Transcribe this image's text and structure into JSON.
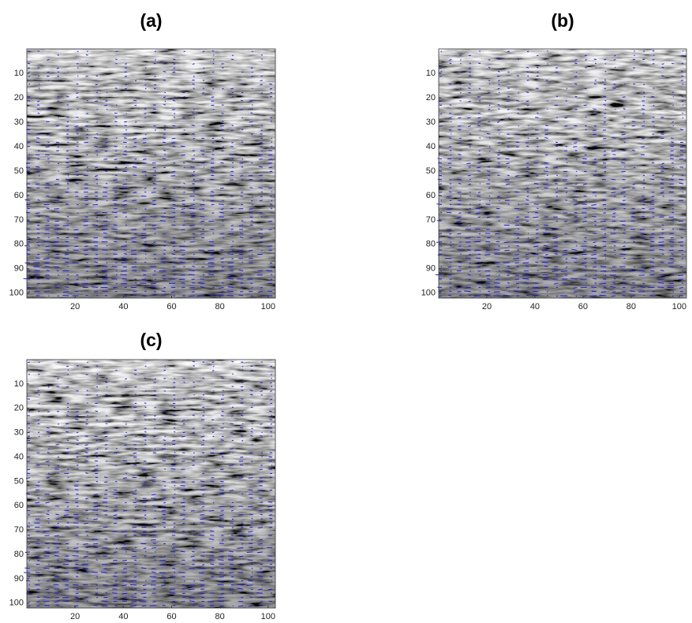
{
  "chart_data": [
    {
      "type": "image",
      "title": "(a)",
      "xlim": [
        0,
        103
      ],
      "ylim": [
        0,
        102
      ],
      "ydir": "reverse",
      "xticks": [
        20,
        40,
        60,
        80,
        100
      ],
      "yticks": [
        10,
        20,
        30,
        40,
        50,
        60,
        70,
        80,
        90,
        100
      ],
      "quiver_color": "#1a1aff"
    },
    {
      "type": "image",
      "title": "(b)",
      "xlim": [
        0,
        103
      ],
      "ylim": [
        0,
        102
      ],
      "ydir": "reverse",
      "xticks": [
        20,
        40,
        60,
        80,
        100
      ],
      "yticks": [
        10,
        20,
        30,
        40,
        50,
        60,
        70,
        80,
        90,
        100
      ],
      "quiver_color": "#1a1aff"
    },
    {
      "type": "image",
      "title": "(c)",
      "xlim": [
        0,
        103
      ],
      "ylim": [
        0,
        102
      ],
      "ydir": "reverse",
      "xticks": [
        20,
        40,
        60,
        80,
        100
      ],
      "yticks": [
        10,
        20,
        30,
        40,
        50,
        60,
        70,
        80,
        90,
        100
      ],
      "quiver_color": "#1a1aff"
    }
  ]
}
